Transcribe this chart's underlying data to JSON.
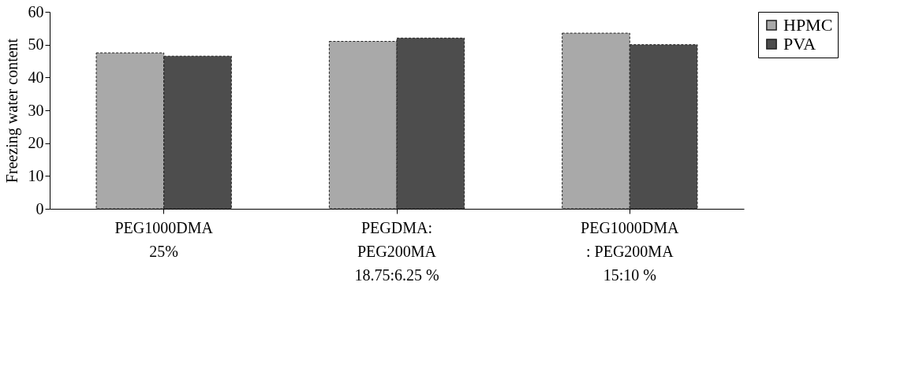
{
  "chart_data": {
    "type": "bar",
    "ylabel": "Freezing water content",
    "categories": [
      "PEG1000DMA\n25%",
      "PEGDMA:\nPEG200MA\n18.75:6.25 %",
      "PEG1000DMA\n: PEG200MA\n15:10 %"
    ],
    "series": [
      {
        "name": "HPMC",
        "color": "#a9a9a9",
        "values": [
          47.5,
          51,
          53.5
        ]
      },
      {
        "name": "PVA",
        "color": "#4d4d4d",
        "values": [
          46.5,
          52,
          50
        ]
      }
    ],
    "ylim": [
      0,
      60
    ],
    "yticks": [
      0,
      10,
      20,
      30,
      40,
      50,
      60
    ],
    "grid": false,
    "legend": "right"
  }
}
